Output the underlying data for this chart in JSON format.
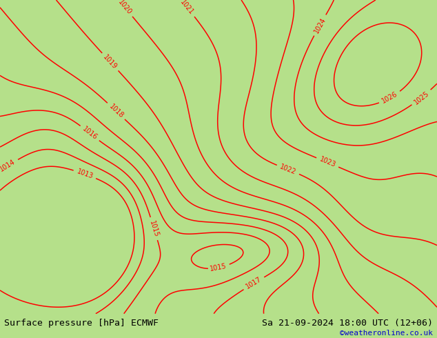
{
  "title_left": "Surface pressure [hPa] ECMWF",
  "title_right": "Sa 21-09-2024 18:00 UTC (12+06)",
  "credit": "©weatheronline.co.uk",
  "land_color": "#b5e08a",
  "sea_color": "#c8c8c8",
  "isobar_color": "#ff0000",
  "border_color_country": "#000000",
  "border_color_state": "#000000",
  "border_color_neighbor": "#808080",
  "text_color": "#000000",
  "credit_color": "#0000cc",
  "bottom_bar_color": "#b5e08a",
  "fontsize_title": 9.5,
  "fontsize_credit": 8,
  "figsize": [
    6.34,
    4.9
  ],
  "dpi": 100,
  "isobar_linewidth": 1.1,
  "label_fontsize": 7,
  "pressure_levels": [
    1013,
    1014,
    1015,
    1016,
    1017,
    1018,
    1019,
    1020,
    1021,
    1022,
    1023,
    1024,
    1025,
    1026
  ],
  "lon_min": 3.5,
  "lon_max": 19.5,
  "lat_min": 46.5,
  "lat_max": 56.5,
  "extent": [
    3.5,
    19.5,
    46.5,
    56.5
  ]
}
